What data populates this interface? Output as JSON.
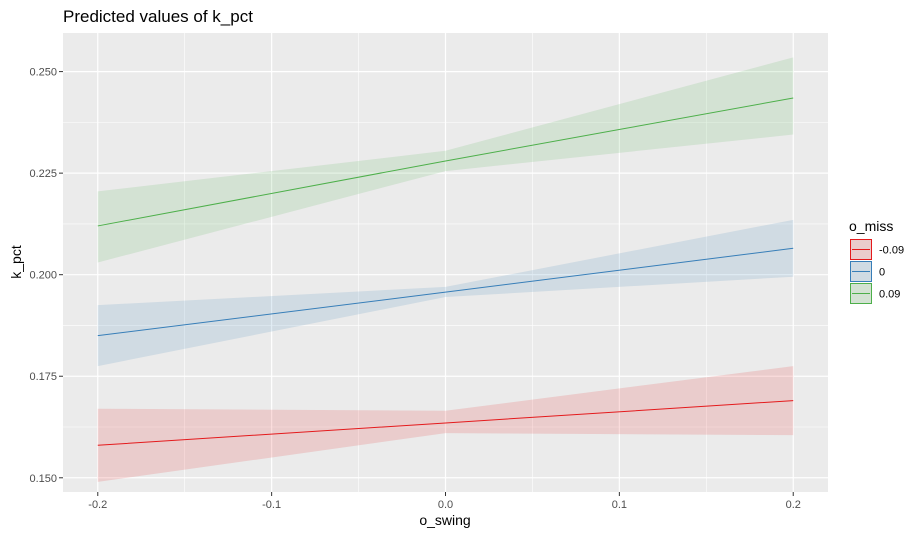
{
  "chart_data": {
    "type": "line",
    "title": "Predicted values of k_pct",
    "xlabel": "o_swing",
    "ylabel": "k_pct",
    "xlim": [
      -0.22,
      0.22
    ],
    "ylim": [
      0.1465,
      0.2595
    ],
    "x_ticks": [
      -0.2,
      -0.1,
      0.0,
      0.1,
      0.2
    ],
    "x_tick_labels": [
      "-0.2",
      "-0.1",
      "0.0",
      "0.1",
      "0.2"
    ],
    "y_ticks": [
      0.15,
      0.175,
      0.2,
      0.225,
      0.25
    ],
    "y_tick_labels": [
      "0.150",
      "0.175",
      "0.200",
      "0.225",
      "0.250"
    ],
    "grid": true,
    "legend": {
      "title": "o_miss",
      "position": "right"
    },
    "series": [
      {
        "name": "-0.09",
        "color": "#e41a1c",
        "x": [
          -0.2,
          0.0,
          0.2
        ],
        "y": [
          0.158,
          0.1635,
          0.169
        ],
        "lower": [
          0.149,
          0.161,
          0.1605
        ],
        "upper": [
          0.167,
          0.1665,
          0.1775
        ]
      },
      {
        "name": "0",
        "color": "#377eb8",
        "x": [
          -0.2,
          0.0,
          0.2
        ],
        "y": [
          0.185,
          0.1957,
          0.2065
        ],
        "lower": [
          0.1775,
          0.1945,
          0.1995
        ],
        "upper": [
          0.1925,
          0.197,
          0.2135
        ]
      },
      {
        "name": "0.09",
        "color": "#4daf4a",
        "x": [
          -0.2,
          0.0,
          0.2
        ],
        "y": [
          0.212,
          0.228,
          0.2435
        ],
        "lower": [
          0.203,
          0.2255,
          0.2345
        ],
        "upper": [
          0.2205,
          0.2305,
          0.2535
        ]
      }
    ]
  }
}
